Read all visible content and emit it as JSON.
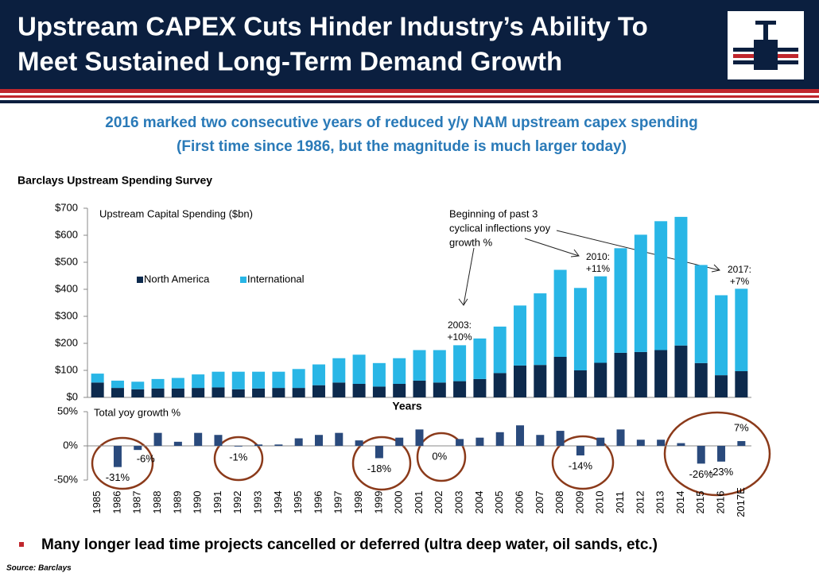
{
  "header": {
    "title": [
      "Upstream CAPEX Cuts Hinder Industry’s Ability To",
      "Meet Sustained Long-Term Demand Growth"
    ]
  },
  "subtitle": [
    "2016 marked two consecutive years of reduced y/y NAM upstream capex spending",
    "(First time since 1986, but the magnitude is much larger today)"
  ],
  "survey_label": "Barclays Upstream Spending Survey",
  "chart_data": [
    {
      "type": "bar",
      "stacked": true,
      "title": "Upstream Capital Spending ($bn)",
      "series": [
        {
          "name": "North America",
          "color": "#0d2a4d",
          "values": [
            55,
            35,
            30,
            33,
            33,
            35,
            37,
            30,
            33,
            35,
            35,
            45,
            55,
            50,
            40,
            50,
            62,
            55,
            60,
            68,
            90,
            118,
            120,
            150,
            100,
            128,
            165,
            168,
            175,
            192,
            127,
            82,
            97
          ]
        },
        {
          "name": "International",
          "color": "#29b6e6",
          "values": [
            33,
            27,
            28,
            35,
            39,
            50,
            58,
            65,
            62,
            60,
            70,
            77,
            90,
            108,
            87,
            95,
            113,
            120,
            133,
            150,
            172,
            222,
            265,
            322,
            305,
            320,
            387,
            434,
            477,
            476,
            363,
            296,
            305
          ]
        }
      ],
      "ylim": [
        0,
        700
      ],
      "yticks": [
        {
          "value": 0,
          "label": "$0"
        },
        {
          "value": 100,
          "label": "$100"
        },
        {
          "value": 200,
          "label": "$200"
        },
        {
          "value": 300,
          "label": "$300"
        },
        {
          "value": 400,
          "label": "$400"
        },
        {
          "value": 500,
          "label": "$500"
        },
        {
          "value": 600,
          "label": "$600"
        },
        {
          "value": 700,
          "label": "$700"
        }
      ],
      "xlabel": "Years",
      "annotations": [
        [
          "2003:",
          "+10%"
        ],
        [
          "2010:",
          "+11%"
        ],
        [
          "2017:",
          "+7%"
        ],
        [
          "Beginning of past 3",
          "cyclical inflections yoy",
          "growth %"
        ]
      ]
    },
    {
      "type": "bar",
      "title": "Total yoy growth %",
      "color": "#2a4a7c",
      "categories": [
        "1985",
        "1986",
        "1987",
        "1988",
        "1989",
        "1990",
        "1991",
        "1992",
        "1993",
        "1994",
        "1995",
        "1996",
        "1997",
        "1998",
        "1999",
        "2000",
        "2001",
        "2002",
        "2003",
        "2004",
        "2005",
        "2006",
        "2007",
        "2008",
        "2009",
        "2010",
        "2011",
        "2012",
        "2013",
        "2014",
        "2015",
        "2016",
        "2017E"
      ],
      "values": [
        null,
        -31,
        -6,
        19,
        6,
        19,
        16,
        -1,
        2,
        2,
        11,
        16,
        19,
        8,
        -18,
        12,
        24,
        0,
        10,
        12,
        20,
        30,
        16,
        22,
        -14,
        12,
        24,
        9,
        9,
        4,
        -26,
        -23,
        7
      ],
      "value_labels": [
        null,
        "-31%",
        "-6%",
        null,
        null,
        null,
        null,
        "-1%",
        null,
        null,
        null,
        null,
        null,
        null,
        "-18%",
        null,
        null,
        "0%",
        null,
        null,
        null,
        null,
        null,
        null,
        "-14%",
        null,
        null,
        null,
        null,
        null,
        "-26%",
        "-23%",
        "7%"
      ],
      "ylim": [
        -50,
        50
      ],
      "yticks": [
        {
          "value": -50,
          "label": "-50%"
        },
        {
          "value": 0,
          "label": "0%"
        },
        {
          "value": 50,
          "label": "50%"
        }
      ]
    }
  ],
  "bullet": "Many longer lead time projects cancelled or deferred (ultra deep water, oil sands, etc.)",
  "source": "Source: Barclays"
}
